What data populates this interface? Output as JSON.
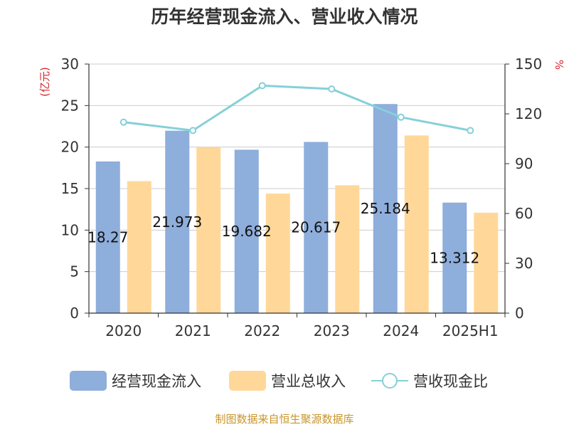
{
  "chart_data": {
    "type": "bar",
    "title": "历年经营现金流入、营业收入情况",
    "categories": [
      "2020",
      "2021",
      "2022",
      "2023",
      "2024",
      "2025H1"
    ],
    "series": [
      {
        "name": "经营现金流入",
        "type": "bar",
        "axis": "left",
        "color": "#8eaedb",
        "values": [
          18.27,
          21.973,
          19.682,
          20.617,
          25.184,
          13.312
        ],
        "labels": [
          "18.27",
          "21.973",
          "19.682",
          "20.617",
          "25.184",
          "13.312"
        ]
      },
      {
        "name": "营业总收入",
        "type": "bar",
        "axis": "left",
        "color": "#ffd899",
        "values": [
          15.9,
          20.0,
          14.4,
          15.4,
          21.4,
          12.1
        ]
      },
      {
        "name": "营收现金比",
        "type": "line",
        "axis": "right",
        "color": "#86d0d8",
        "values": [
          115,
          110,
          137,
          135,
          118,
          110
        ]
      }
    ],
    "left_axis": {
      "unit": "(亿元)",
      "min": 0,
      "max": 30,
      "ticks": [
        0,
        5,
        10,
        15,
        20,
        25,
        30
      ]
    },
    "right_axis": {
      "unit": "%",
      "min": 0,
      "max": 150,
      "ticks": [
        0,
        30,
        60,
        90,
        120,
        150
      ]
    },
    "grid": true,
    "legend_position": "bottom"
  },
  "source": "制图数据来自恒生聚源数据库"
}
